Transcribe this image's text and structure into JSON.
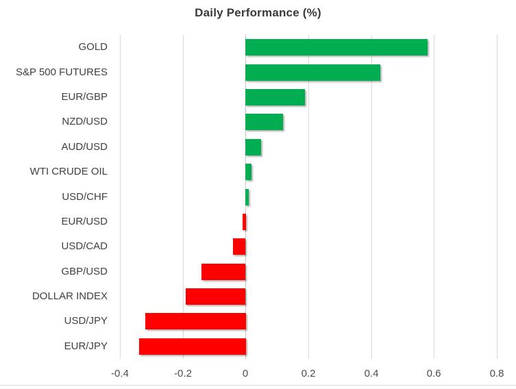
{
  "chart_data": {
    "type": "bar",
    "orientation": "horizontal",
    "title": "Daily Performance (%)",
    "categories": [
      "GOLD",
      "S&P 500 FUTURES",
      "EUR/GBP",
      "NZD/USD",
      "AUD/USD",
      "WTI CRUDE OIL",
      "USD/CHF",
      "EUR/USD",
      "USD/CAD",
      "GBP/USD",
      "DOLLAR INDEX",
      "USD/JPY",
      "EUR/JPY"
    ],
    "values": [
      0.58,
      0.43,
      0.19,
      0.12,
      0.05,
      0.02,
      0.01,
      -0.01,
      -0.04,
      -0.14,
      -0.19,
      -0.32,
      -0.34
    ],
    "xlim": [
      -0.4,
      0.8
    ],
    "xticks": [
      -0.4,
      -0.2,
      0,
      0.2,
      0.4,
      0.6,
      0.8
    ],
    "xtick_labels": [
      "-0.4",
      "-0.2",
      "0",
      "0.2",
      "0.4",
      "0.6",
      "0.8"
    ],
    "grid": "vertical",
    "legend": "none",
    "colors": {
      "positive": "#00ae51",
      "negative": "#fe0000"
    }
  }
}
